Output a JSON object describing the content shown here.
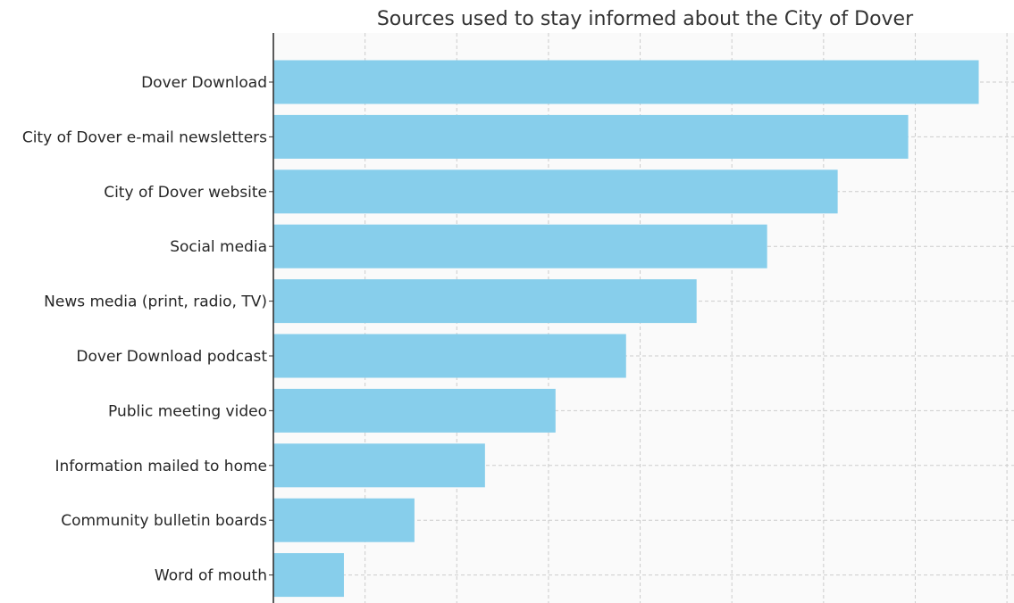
{
  "chart_data": {
    "type": "bar",
    "orientation": "horizontal",
    "title": "Sources used to stay informed about the City of Dover",
    "xlabel": "",
    "ylabel": "",
    "categories": [
      "Dover Download",
      "City of Dover e-mail newsletters",
      "City of Dover website",
      "Social media",
      "News media (print, radio, TV)",
      "Dover Download podcast",
      "Public meeting video",
      "Information mailed to home",
      "Community bulletin boards",
      "Word of mouth"
    ],
    "values": [
      10,
      9,
      8,
      7,
      6,
      5,
      4,
      3,
      2,
      1
    ],
    "xlim": [
      0,
      10.5
    ],
    "bar_color": "#87CEEB",
    "grid": true,
    "grid_style": "dashed",
    "legend": "none",
    "background_color": "#FAFAFA"
  }
}
